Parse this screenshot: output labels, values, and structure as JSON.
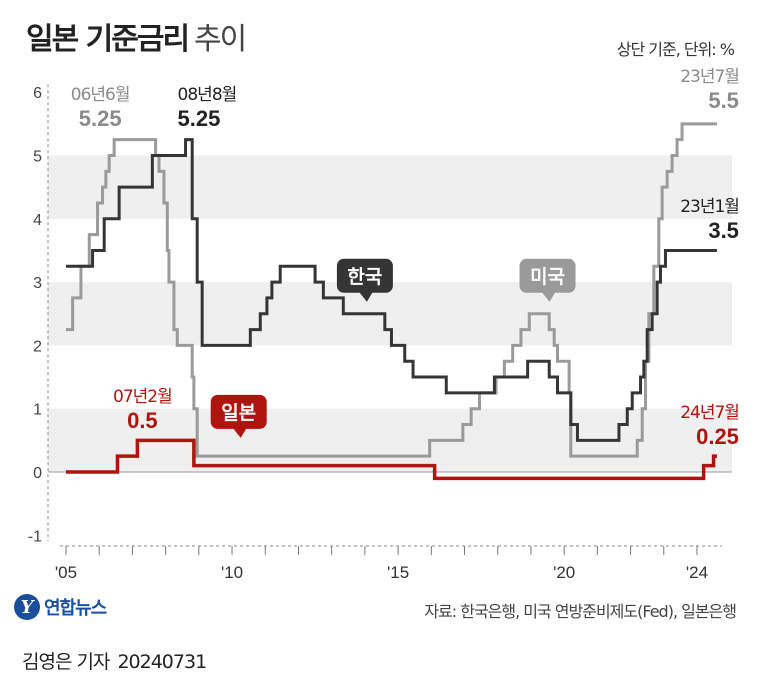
{
  "header": {
    "title_bold": "일본 기준금리",
    "title_light": "추이",
    "unit": "상단 기준, 단위: %"
  },
  "footer": {
    "logo_text": "연합뉴스",
    "logo_mark": "Y",
    "source": "자료: 한국은행, 미국 연방준비제도(Fed), 일본은행",
    "reporter": "김영은 기자",
    "date": "20240731"
  },
  "chart_data": {
    "type": "line",
    "title": "일본 기준금리 추이",
    "ylim": [
      -1,
      6
    ],
    "y_ticks": [
      "6",
      "5",
      "4",
      "3",
      "2",
      "1",
      "0",
      "-1"
    ],
    "x_ticks": [
      {
        "x": 2005,
        "label": "'05"
      },
      {
        "x": 2010,
        "label": "'10"
      },
      {
        "x": 2015,
        "label": "'15"
      },
      {
        "x": 2020,
        "label": "'20"
      },
      {
        "x": 2024,
        "label": "'24"
      }
    ],
    "colors": {
      "미국": "#9a9a9a",
      "한국": "#353535",
      "일본": "#b0140f",
      "band": "#efefef",
      "zero": "#999999",
      "label_gray": "#8a8a8a"
    },
    "series": [
      {
        "name": "미국",
        "step": [
          [
            2005.0,
            2.25
          ],
          [
            2005.2,
            2.75
          ],
          [
            2005.45,
            3.25
          ],
          [
            2005.7,
            3.75
          ],
          [
            2005.95,
            4.25
          ],
          [
            2006.1,
            4.5
          ],
          [
            2006.2,
            4.75
          ],
          [
            2006.3,
            5.0
          ],
          [
            2006.45,
            5.25
          ],
          [
            2007.7,
            5.0
          ],
          [
            2007.8,
            4.75
          ],
          [
            2007.95,
            4.25
          ],
          [
            2008.05,
            3.5
          ],
          [
            2008.1,
            3.0
          ],
          [
            2008.25,
            2.25
          ],
          [
            2008.35,
            2.0
          ],
          [
            2008.8,
            1.5
          ],
          [
            2008.85,
            1.0
          ],
          [
            2008.95,
            0.25
          ],
          [
            2015.95,
            0.5
          ],
          [
            2016.95,
            0.75
          ],
          [
            2017.2,
            1.0
          ],
          [
            2017.45,
            1.25
          ],
          [
            2017.95,
            1.5
          ],
          [
            2018.2,
            1.75
          ],
          [
            2018.45,
            2.0
          ],
          [
            2018.7,
            2.25
          ],
          [
            2018.95,
            2.5
          ],
          [
            2019.55,
            2.25
          ],
          [
            2019.7,
            2.0
          ],
          [
            2019.8,
            1.75
          ],
          [
            2020.15,
            1.25
          ],
          [
            2020.2,
            0.25
          ],
          [
            2022.2,
            0.5
          ],
          [
            2022.35,
            1.0
          ],
          [
            2022.45,
            1.75
          ],
          [
            2022.55,
            2.5
          ],
          [
            2022.7,
            3.25
          ],
          [
            2022.85,
            4.0
          ],
          [
            2022.95,
            4.5
          ],
          [
            2023.1,
            4.75
          ],
          [
            2023.25,
            5.0
          ],
          [
            2023.4,
            5.25
          ],
          [
            2023.55,
            5.5
          ],
          [
            2024.6,
            5.5
          ]
        ]
      },
      {
        "name": "한국",
        "step": [
          [
            2005.0,
            3.25
          ],
          [
            2005.8,
            3.5
          ],
          [
            2006.15,
            4.0
          ],
          [
            2006.6,
            4.5
          ],
          [
            2007.6,
            5.0
          ],
          [
            2008.6,
            5.25
          ],
          [
            2008.8,
            4.0
          ],
          [
            2008.95,
            3.0
          ],
          [
            2009.1,
            2.0
          ],
          [
            2010.55,
            2.25
          ],
          [
            2010.85,
            2.5
          ],
          [
            2011.05,
            2.75
          ],
          [
            2011.2,
            3.0
          ],
          [
            2011.45,
            3.25
          ],
          [
            2012.5,
            3.0
          ],
          [
            2012.75,
            2.75
          ],
          [
            2013.35,
            2.5
          ],
          [
            2014.6,
            2.25
          ],
          [
            2014.8,
            2.0
          ],
          [
            2015.2,
            1.75
          ],
          [
            2015.45,
            1.5
          ],
          [
            2016.45,
            1.25
          ],
          [
            2017.9,
            1.5
          ],
          [
            2018.9,
            1.75
          ],
          [
            2019.55,
            1.5
          ],
          [
            2019.8,
            1.25
          ],
          [
            2020.2,
            0.75
          ],
          [
            2020.4,
            0.5
          ],
          [
            2021.65,
            0.75
          ],
          [
            2021.9,
            1.0
          ],
          [
            2022.05,
            1.25
          ],
          [
            2022.3,
            1.5
          ],
          [
            2022.4,
            1.75
          ],
          [
            2022.5,
            2.25
          ],
          [
            2022.65,
            2.5
          ],
          [
            2022.8,
            3.0
          ],
          [
            2022.9,
            3.25
          ],
          [
            2023.05,
            3.5
          ],
          [
            2024.6,
            3.5
          ]
        ]
      },
      {
        "name": "일본",
        "step": [
          [
            2005.0,
            0.0
          ],
          [
            2006.55,
            0.25
          ],
          [
            2007.15,
            0.5
          ],
          [
            2008.85,
            0.1
          ],
          [
            2016.1,
            -0.1
          ],
          [
            2024.2,
            0.1
          ],
          [
            2024.5,
            0.25
          ],
          [
            2024.6,
            0.25
          ]
        ]
      }
    ],
    "legend_callouts": [
      {
        "text": "한국",
        "x": 2014.0,
        "y": 3.1,
        "style": "dark"
      },
      {
        "text": "미국",
        "x": 2019.5,
        "y": 3.1,
        "style": "gray"
      },
      {
        "text": "일본",
        "x": 2010.2,
        "y": 0.95,
        "style": "red"
      }
    ],
    "annotations": [
      {
        "date": "06년6월",
        "value": "5.25",
        "x": 2006.45,
        "y": 5.25,
        "color": "gray",
        "align": "middle"
      },
      {
        "date": "08년8월",
        "value": "5.25",
        "x": 2008.6,
        "y": 5.25,
        "color": "dark",
        "align": "start"
      },
      {
        "date": "23년7월",
        "value": "5.5",
        "x": 2024.6,
        "y": 5.5,
        "color": "gray",
        "align": "end"
      },
      {
        "date": "23년1월",
        "value": "3.5",
        "x": 2024.6,
        "y": 3.5,
        "color": "dark",
        "align": "end"
      },
      {
        "date": "07년2월",
        "value": "0.5",
        "x": 2007.3,
        "y": 0.5,
        "color": "red",
        "align": "middle"
      },
      {
        "date": "24년7월",
        "value": "0.25",
        "x": 2024.6,
        "y": 0.25,
        "color": "red",
        "align": "end"
      }
    ]
  }
}
